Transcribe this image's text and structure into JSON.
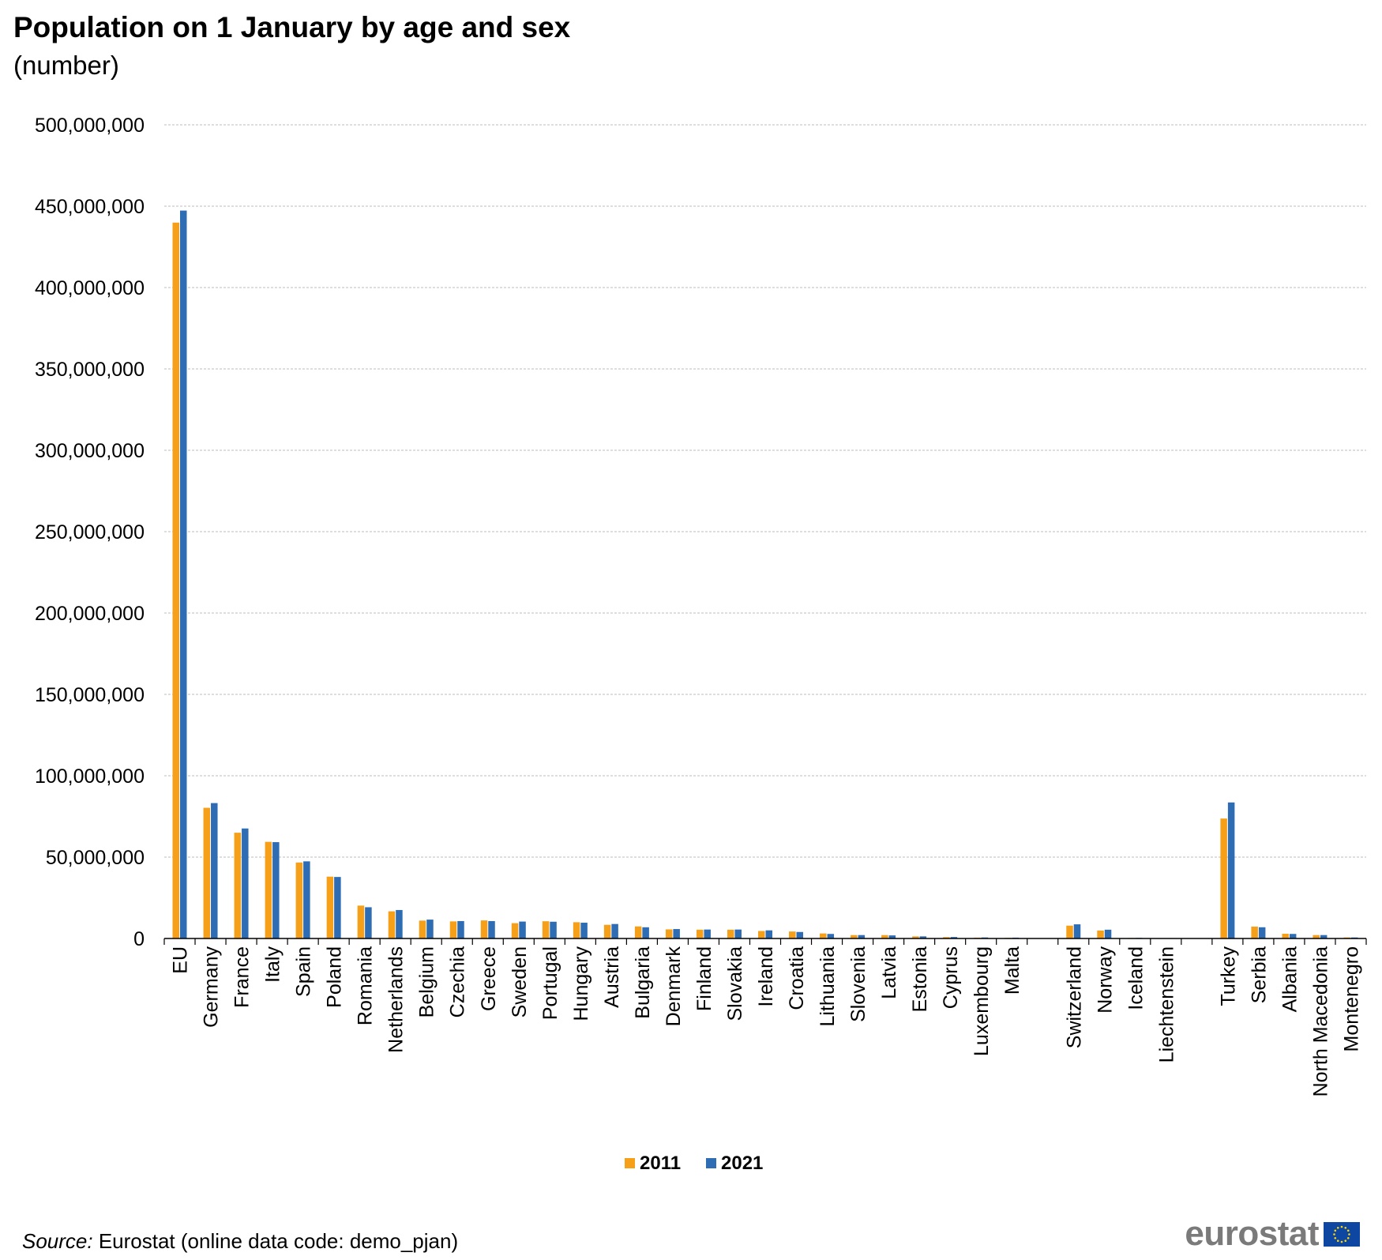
{
  "title": "Population on 1 January by age and sex",
  "subtitle": "(number)",
  "source": {
    "label": "Source:",
    "text": " Eurostat (online data code: demo_pjan)"
  },
  "logo_text": "eurostat",
  "colors": {
    "series_2011": "#F6A01A",
    "series_2021": "#2E6DB4",
    "grid": "#bdbdbd",
    "axis": "#000000",
    "logo": "#7a7a7a",
    "eu_blue": "#0E47A1",
    "eu_gold": "#FFD700"
  },
  "chart_data": {
    "type": "bar",
    "title": "Population on 1 January by age and sex",
    "subtitle": "(number)",
    "xlabel": "",
    "ylabel": "",
    "ylim": [
      0,
      500000000
    ],
    "yticks": [
      0,
      50000000,
      100000000,
      150000000,
      200000000,
      250000000,
      300000000,
      350000000,
      400000000,
      450000000,
      500000000
    ],
    "ytick_labels": [
      "0",
      "50,000,000",
      "100,000,000",
      "150,000,000",
      "200,000,000",
      "250,000,000",
      "300,000,000",
      "350,000,000",
      "400,000,000",
      "450,000,000",
      "500,000,000"
    ],
    "grid": true,
    "legend_position": "bottom-center",
    "categories": [
      "EU",
      "Germany",
      "France",
      "Italy",
      "Spain",
      "Poland",
      "Romania",
      "Netherlands",
      "Belgium",
      "Czechia",
      "Greece",
      "Sweden",
      "Portugal",
      "Hungary",
      "Austria",
      "Bulgaria",
      "Denmark",
      "Finland",
      "Slovakia",
      "Ireland",
      "Croatia",
      "Lithuania",
      "Slovenia",
      "Latvia",
      "Estonia",
      "Cyprus",
      "Luxembourg",
      "Malta",
      "",
      "Switzerland",
      "Norway",
      "Iceland",
      "Liechtenstein",
      "",
      "Turkey",
      "Serbia",
      "Albania",
      "North Macedonia",
      "Montenegro"
    ],
    "series": [
      {
        "name": "2011",
        "values": [
          439900000,
          80300000,
          65000000,
          59400000,
          46700000,
          38000000,
          20200000,
          16700000,
          11000000,
          10500000,
          11100000,
          9400000,
          10600000,
          10000000,
          8400000,
          7400000,
          5600000,
          5400000,
          5400000,
          4600000,
          4300000,
          3100000,
          2100000,
          2100000,
          1300000,
          840000,
          510000,
          420000,
          null,
          7900000,
          4900000,
          320000,
          36000,
          null,
          73700000,
          7300000,
          2900000,
          2100000,
          620000
        ]
      },
      {
        "name": "2021",
        "values": [
          447300000,
          83200000,
          67600000,
          59200000,
          47400000,
          37800000,
          19200000,
          17500000,
          11600000,
          10700000,
          10700000,
          10400000,
          10300000,
          9700000,
          8900000,
          6900000,
          5800000,
          5500000,
          5500000,
          5000000,
          4000000,
          2800000,
          2100000,
          1900000,
          1300000,
          900000,
          630000,
          520000,
          null,
          8700000,
          5400000,
          370000,
          39000,
          null,
          83600000,
          6900000,
          2800000,
          2100000,
          620000
        ]
      }
    ]
  }
}
